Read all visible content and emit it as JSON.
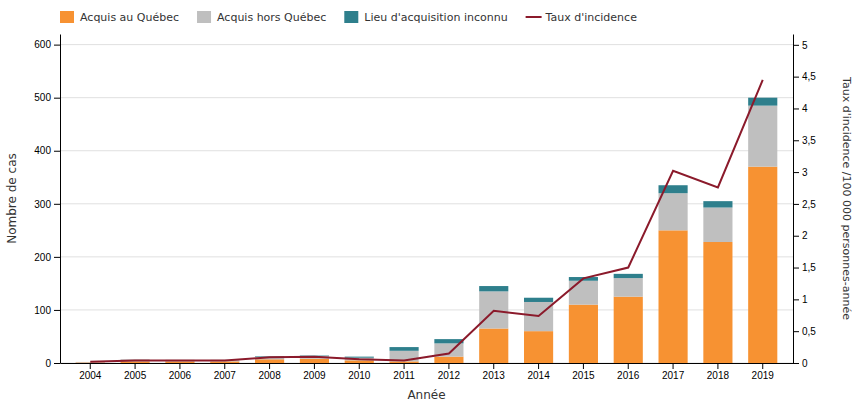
{
  "chart_data": {
    "type": "bar",
    "stacked": true,
    "categories": [
      "2004",
      "2005",
      "2006",
      "2007",
      "2008",
      "2009",
      "2010",
      "2011",
      "2012",
      "2013",
      "2014",
      "2015",
      "2016",
      "2017",
      "2018",
      "2019"
    ],
    "xlabel": "Année",
    "ylabel": "Nombre de cas",
    "y2label": "Taux d'incidence /100 000 personnes-année",
    "ylim": [
      0,
      620
    ],
    "yticks": [
      0,
      100,
      200,
      300,
      400,
      500,
      600
    ],
    "y2lim": [
      0,
      5.17
    ],
    "y2ticks": [
      0,
      {
        "value": 0.5,
        "label": "0,5"
      },
      1,
      {
        "value": 1.5,
        "label": "1,5"
      },
      2,
      {
        "value": 2.5,
        "label": "2,5"
      },
      3,
      {
        "value": 3.5,
        "label": "3,5"
      },
      4,
      {
        "value": 4.5,
        "label": "4,5"
      },
      5
    ],
    "grid": true,
    "legend": "top-left",
    "series": [
      {
        "name": "Acquis au Québec",
        "color": "#F79232",
        "values": [
          1,
          3,
          3,
          3,
          7,
          8,
          5,
          3,
          12,
          65,
          60,
          110,
          125,
          250,
          228,
          370
        ]
      },
      {
        "name": "Acquis hors Québec",
        "color": "#BFBFBF",
        "values": [
          1,
          4,
          3,
          3,
          5,
          5,
          5,
          20,
          25,
          70,
          55,
          45,
          35,
          70,
          65,
          115
        ]
      },
      {
        "name": "Lieu d'acquisition inconnu",
        "color": "#2E7F8C",
        "values": [
          0,
          0,
          0,
          0,
          1,
          1,
          2,
          7,
          8,
          10,
          8,
          7,
          8,
          15,
          12,
          15
        ]
      },
      {
        "name": "Taux d'incidence",
        "type": "line",
        "axis": "y2",
        "color": "#8B1A2B",
        "values": [
          0.02,
          0.04,
          0.04,
          0.04,
          0.09,
          0.1,
          0.06,
          0.04,
          0.15,
          0.82,
          0.74,
          1.33,
          1.5,
          3.02,
          2.76,
          4.45
        ]
      }
    ]
  }
}
